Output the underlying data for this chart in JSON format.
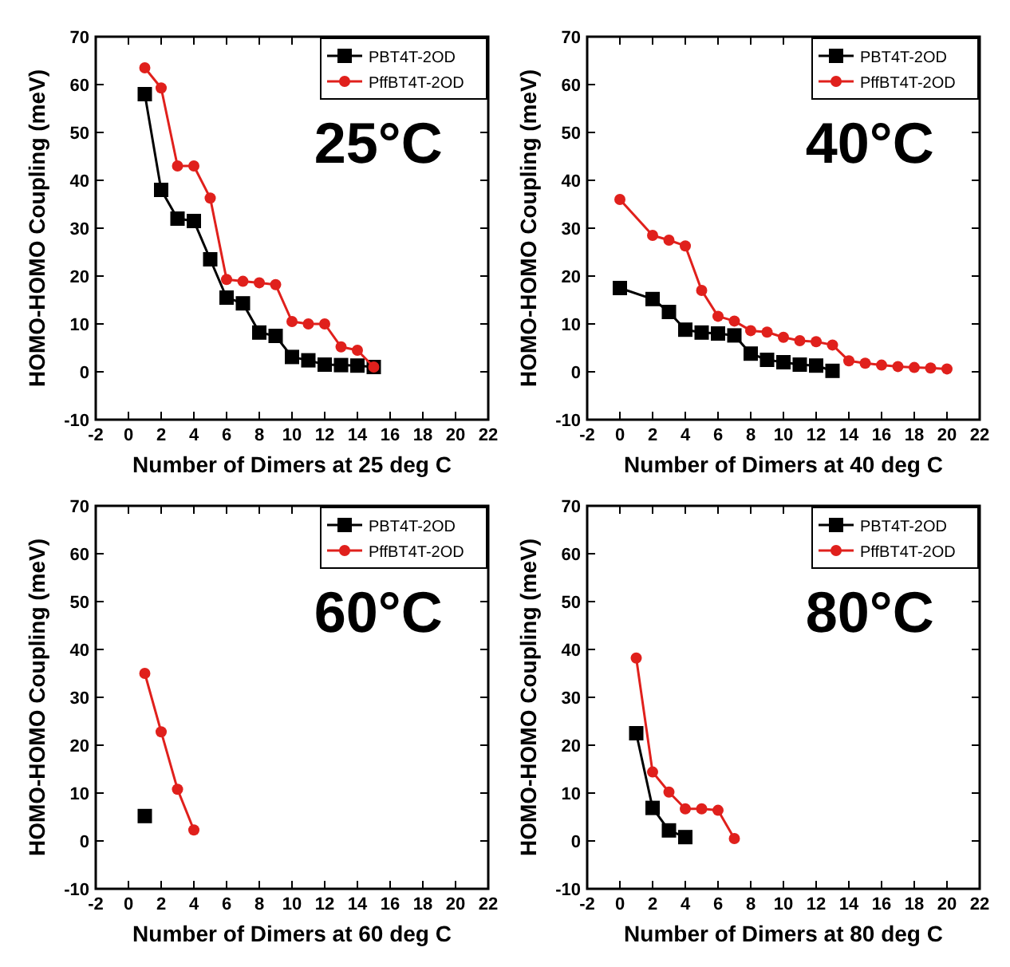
{
  "chart_data": [
    {
      "type": "line",
      "xlabel": "Number of Dimers at 25 deg C",
      "ylabel": "HOMO-HOMO Coupling (meV)",
      "annotations": [
        "25°C"
      ],
      "legend": "top right",
      "xlim": [
        -2,
        22
      ],
      "ylim": [
        -10,
        70
      ],
      "xticks": [
        -2,
        0,
        2,
        4,
        6,
        8,
        10,
        12,
        14,
        16,
        18,
        20,
        22
      ],
      "yticks": [
        -10,
        0,
        10,
        20,
        30,
        40,
        50,
        60,
        70
      ],
      "series": [
        {
          "name": "PBT4T-2OD",
          "color": "#000000",
          "marker": "square",
          "x": [
            1,
            2,
            3,
            4,
            5,
            6,
            7,
            8,
            9,
            10,
            11,
            12,
            13,
            14,
            15
          ],
          "values": [
            58,
            38,
            32,
            31.5,
            23.5,
            15.5,
            14.3,
            8.2,
            7.5,
            3.1,
            2.4,
            1.5,
            1.4,
            1.3,
            1
          ]
        },
        {
          "name": "PffBT4T-2OD",
          "color": "#e0201c",
          "marker": "circle",
          "x": [
            1,
            2,
            3,
            4,
            5,
            6,
            7,
            8,
            9,
            10,
            11,
            12,
            13,
            14,
            15
          ],
          "values": [
            63.5,
            59.3,
            43,
            43,
            36.3,
            19.3,
            18.9,
            18.6,
            18.2,
            10.5,
            10,
            10,
            5.2,
            4.5,
            1
          ]
        }
      ]
    },
    {
      "type": "line",
      "xlabel": "Number of Dimers at 40 deg C",
      "ylabel": "HOMO-HOMO Coupling (meV)",
      "annotations": [
        "40°C"
      ],
      "legend": "top right",
      "xlim": [
        -2,
        22
      ],
      "ylim": [
        -10,
        70
      ],
      "xticks": [
        -2,
        0,
        2,
        4,
        6,
        8,
        10,
        12,
        14,
        16,
        18,
        20,
        22
      ],
      "yticks": [
        -10,
        0,
        10,
        20,
        30,
        40,
        50,
        60,
        70
      ],
      "series": [
        {
          "name": "PBT4T-2OD",
          "color": "#000000",
          "marker": "square",
          "x": [
            0,
            2,
            3,
            4,
            5,
            6,
            7,
            8,
            9,
            10,
            11,
            12,
            13
          ],
          "values": [
            17.5,
            15.2,
            12.5,
            8.8,
            8.2,
            8,
            7.6,
            3.8,
            2.5,
            2,
            1.5,
            1.3,
            0.2
          ]
        },
        {
          "name": "PffBT4T-2OD",
          "color": "#e0201c",
          "marker": "circle",
          "x": [
            0,
            2,
            3,
            4,
            5,
            6,
            7,
            8,
            9,
            10,
            11,
            12,
            13,
            14,
            15,
            16,
            17,
            18,
            19,
            20
          ],
          "values": [
            36,
            28.5,
            27.5,
            26.3,
            17,
            11.6,
            10.6,
            8.6,
            8.3,
            7.2,
            6.5,
            6.3,
            5.6,
            2.3,
            1.8,
            1.4,
            1.1,
            0.9,
            0.8,
            0.6
          ]
        }
      ]
    },
    {
      "type": "line",
      "xlabel": "Number of Dimers at 60 deg C",
      "ylabel": "HOMO-HOMO Coupling (meV)",
      "annotations": [
        "60°C"
      ],
      "legend": "top right",
      "xlim": [
        -2,
        22
      ],
      "ylim": [
        -10,
        70
      ],
      "xticks": [
        -2,
        0,
        2,
        4,
        6,
        8,
        10,
        12,
        14,
        16,
        18,
        20,
        22
      ],
      "yticks": [
        -10,
        0,
        10,
        20,
        30,
        40,
        50,
        60,
        70
      ],
      "series": [
        {
          "name": "PBT4T-2OD",
          "color": "#000000",
          "marker": "square",
          "x": [
            1
          ],
          "values": [
            5.2
          ]
        },
        {
          "name": "PffBT4T-2OD",
          "color": "#e0201c",
          "marker": "circle",
          "x": [
            1,
            2,
            3,
            4
          ],
          "values": [
            35,
            22.8,
            10.8,
            2.3
          ]
        }
      ]
    },
    {
      "type": "line",
      "xlabel": "Number of Dimers at 80 deg C",
      "ylabel": "HOMO-HOMO Coupling (meV)",
      "annotations": [
        "80°C"
      ],
      "legend": "top right",
      "xlim": [
        -2,
        22
      ],
      "ylim": [
        -10,
        70
      ],
      "xticks": [
        -2,
        0,
        2,
        4,
        6,
        8,
        10,
        12,
        14,
        16,
        18,
        20,
        22
      ],
      "yticks": [
        -10,
        0,
        10,
        20,
        30,
        40,
        50,
        60,
        70
      ],
      "series": [
        {
          "name": "PBT4T-2OD",
          "color": "#000000",
          "marker": "square",
          "x": [
            1,
            2,
            3,
            4
          ],
          "values": [
            22.5,
            6.9,
            2.2,
            0.8
          ]
        },
        {
          "name": "PffBT4T-2OD",
          "color": "#e0201c",
          "marker": "circle",
          "x": [
            1,
            2,
            3,
            4,
            5,
            6,
            7
          ],
          "values": [
            38.2,
            14.4,
            10.2,
            6.7,
            6.7,
            6.4,
            0.5
          ]
        }
      ]
    }
  ]
}
